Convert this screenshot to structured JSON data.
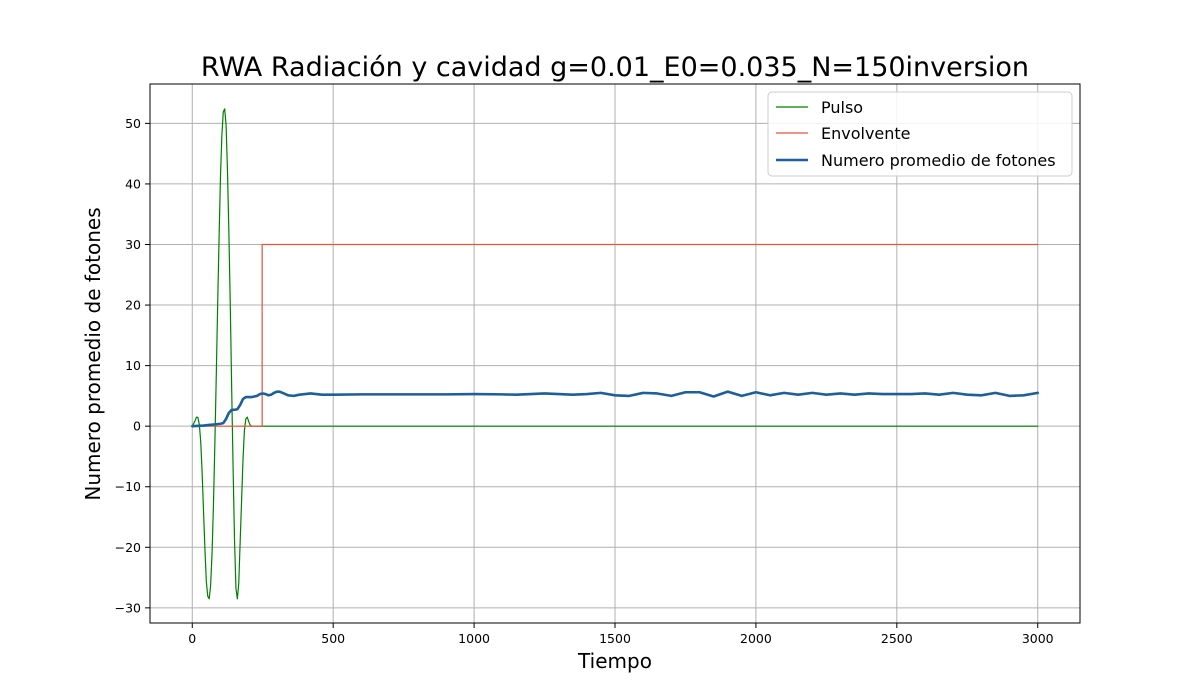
{
  "chart_data": {
    "type": "line",
    "title": "RWA Radiación y cavidad g=0.01_E0=0.035_N=150inversion",
    "xlabel": "Tiempo",
    "ylabel": "Numero promedio de fotones",
    "xlim": [
      -150,
      3150
    ],
    "ylim": [
      -32.5,
      56.5
    ],
    "x_ticks": [
      0,
      500,
      1000,
      1500,
      2000,
      2500,
      3000
    ],
    "y_ticks": [
      -30,
      -20,
      -10,
      0,
      10,
      20,
      30,
      40,
      50
    ],
    "x_tick_labels": [
      "0",
      "500",
      "1000",
      "1500",
      "2000",
      "2500",
      "3000"
    ],
    "y_tick_labels": [
      "−30",
      "−20",
      "−10",
      "0",
      "10",
      "20",
      "30",
      "40",
      "50"
    ],
    "grid": true,
    "legend_position": "top-right",
    "series": [
      {
        "name": "Pulso",
        "color": "#008000",
        "stroke_width": 1.2,
        "x": [
          0,
          10,
          15,
          20,
          25,
          30,
          35,
          40,
          45,
          50,
          55,
          60,
          65,
          70,
          75,
          80,
          85,
          90,
          95,
          100,
          105,
          110,
          115,
          120,
          125,
          130,
          135,
          140,
          145,
          150,
          155,
          160,
          165,
          170,
          175,
          180,
          185,
          190,
          195,
          200,
          205,
          210,
          215,
          220,
          225,
          230,
          235,
          240,
          245,
          250,
          3000
        ],
        "y": [
          0.0,
          0.9,
          1.5,
          1.4,
          0.3,
          -2.6,
          -7.7,
          -14.2,
          -20.4,
          -25.7,
          -28.1,
          -28.5,
          -26.4,
          -21.2,
          -13.3,
          -3.2,
          8.0,
          19.8,
          31.0,
          41.0,
          48.0,
          51.9,
          52.4,
          49.7,
          42.1,
          31.7,
          19.6,
          5.7,
          -7.3,
          -19.0,
          -26.8,
          -28.5,
          -25.9,
          -19.0,
          -12.3,
          -5.5,
          -0.7,
          1.2,
          1.5,
          0.8,
          0.2,
          0.0,
          0.0,
          0.0,
          0.0,
          0.0,
          0.0,
          0.0,
          0.0,
          0.0,
          0.0
        ]
      },
      {
        "name": "Envolvente",
        "color": "#e2553a",
        "stroke_width": 1.2,
        "x": [
          0,
          248,
          248,
          3000
        ],
        "y": [
          0,
          0,
          30,
          30
        ]
      },
      {
        "name": "Numero promedio de fotones",
        "color": "#1f5f96",
        "stroke_width": 2.6,
        "x": [
          0,
          40,
          60,
          80,
          100,
          110,
          120,
          130,
          140,
          150,
          160,
          170,
          180,
          190,
          200,
          210,
          220,
          230,
          240,
          250,
          260,
          270,
          280,
          290,
          300,
          310,
          320,
          340,
          360,
          380,
          400,
          420,
          440,
          460,
          480,
          500,
          600,
          700,
          800,
          900,
          1000,
          1100,
          1150,
          1200,
          1250,
          1300,
          1350,
          1400,
          1450,
          1500,
          1550,
          1600,
          1650,
          1700,
          1750,
          1800,
          1850,
          1900,
          1950,
          2000,
          2050,
          2100,
          2150,
          2200,
          2250,
          2300,
          2350,
          2400,
          2450,
          2500,
          2550,
          2600,
          2650,
          2700,
          2750,
          2800,
          2850,
          2900,
          2950,
          3000
        ],
        "y": [
          0.0,
          0.1,
          0.2,
          0.3,
          0.4,
          0.5,
          1.2,
          2.2,
          2.7,
          2.7,
          2.8,
          3.5,
          4.5,
          4.8,
          4.8,
          4.8,
          4.9,
          5.0,
          5.3,
          5.4,
          5.3,
          5.1,
          5.2,
          5.5,
          5.7,
          5.7,
          5.5,
          5.1,
          5.0,
          5.2,
          5.3,
          5.4,
          5.3,
          5.2,
          5.2,
          5.2,
          5.25,
          5.25,
          5.25,
          5.25,
          5.3,
          5.25,
          5.2,
          5.3,
          5.4,
          5.3,
          5.2,
          5.3,
          5.5,
          5.1,
          5.0,
          5.5,
          5.4,
          5.0,
          5.6,
          5.6,
          4.9,
          5.7,
          5.0,
          5.6,
          5.1,
          5.5,
          5.2,
          5.5,
          5.2,
          5.4,
          5.2,
          5.4,
          5.3,
          5.3,
          5.3,
          5.4,
          5.2,
          5.5,
          5.2,
          5.1,
          5.5,
          5.0,
          5.1,
          5.5
        ]
      }
    ]
  }
}
